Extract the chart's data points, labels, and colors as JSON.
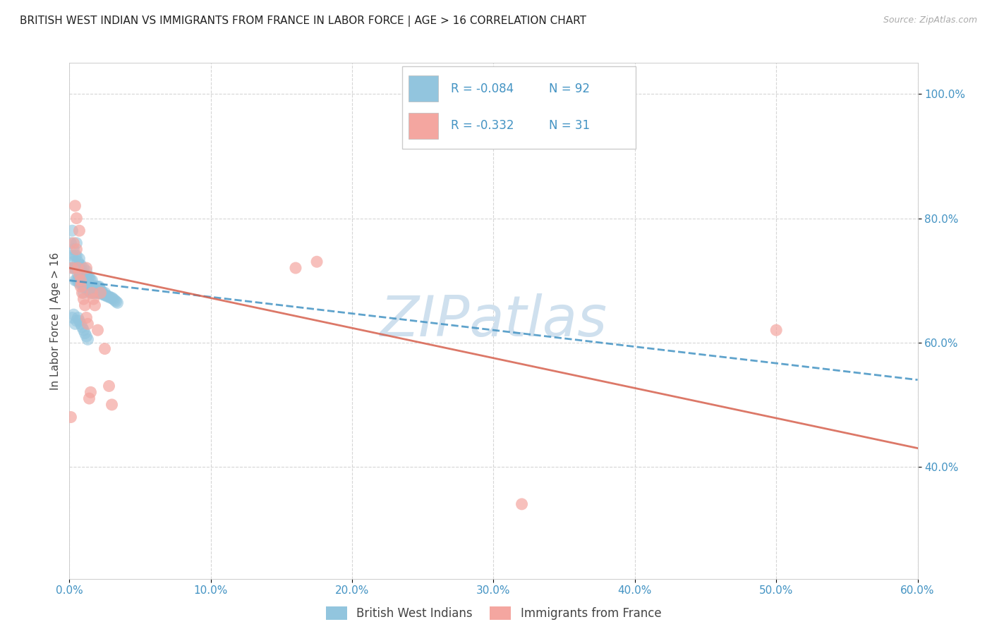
{
  "title": "BRITISH WEST INDIAN VS IMMIGRANTS FROM FRANCE IN LABOR FORCE | AGE > 16 CORRELATION CHART",
  "source_text": "Source: ZipAtlas.com",
  "ylabel": "In Labor Force | Age > 16",
  "xlim": [
    0.0,
    0.6
  ],
  "ylim": [
    0.22,
    1.05
  ],
  "xticks": [
    0.0,
    0.1,
    0.2,
    0.3,
    0.4,
    0.5,
    0.6
  ],
  "yticks": [
    0.4,
    0.6,
    0.8,
    1.0
  ],
  "xticklabels": [
    "0.0%",
    "10.0%",
    "20.0%",
    "30.0%",
    "40.0%",
    "50.0%",
    "60.0%"
  ],
  "yticklabels": [
    "40.0%",
    "60.0%",
    "80.0%",
    "100.0%"
  ],
  "r1": -0.084,
  "n1": 92,
  "r2": -0.332,
  "n2": 31,
  "color_blue": "#92c5de",
  "color_blue_edge": "#6baed6",
  "color_blue_line": "#4393c3",
  "color_pink": "#f4a6a0",
  "color_pink_edge": "#d6604d",
  "color_pink_line": "#d6604d",
  "color_r_value": "#4393c3",
  "color_axis_ticks": "#4393c3",
  "background_color": "#ffffff",
  "grid_color": "#cccccc",
  "title_fontsize": 11,
  "axis_label_fontsize": 11,
  "tick_fontsize": 11,
  "watermark_color": "#cfe0ee",
  "blue_x": [
    0.001,
    0.001,
    0.002,
    0.002,
    0.003,
    0.003,
    0.003,
    0.004,
    0.004,
    0.004,
    0.005,
    0.005,
    0.005,
    0.005,
    0.006,
    0.006,
    0.006,
    0.006,
    0.007,
    0.007,
    0.007,
    0.007,
    0.007,
    0.008,
    0.008,
    0.008,
    0.008,
    0.009,
    0.009,
    0.009,
    0.01,
    0.01,
    0.01,
    0.01,
    0.01,
    0.011,
    0.011,
    0.011,
    0.012,
    0.012,
    0.012,
    0.012,
    0.013,
    0.013,
    0.013,
    0.014,
    0.014,
    0.014,
    0.015,
    0.015,
    0.015,
    0.016,
    0.016,
    0.016,
    0.017,
    0.017,
    0.018,
    0.018,
    0.019,
    0.019,
    0.02,
    0.02,
    0.021,
    0.021,
    0.022,
    0.022,
    0.023,
    0.023,
    0.024,
    0.025,
    0.025,
    0.026,
    0.027,
    0.028,
    0.029,
    0.03,
    0.031,
    0.032,
    0.033,
    0.034,
    0.002,
    0.003,
    0.004,
    0.005,
    0.006,
    0.007,
    0.008,
    0.009,
    0.01,
    0.011,
    0.012,
    0.013
  ],
  "blue_y": [
    0.72,
    0.76,
    0.74,
    0.78,
    0.73,
    0.75,
    0.72,
    0.7,
    0.72,
    0.74,
    0.7,
    0.72,
    0.74,
    0.76,
    0.7,
    0.71,
    0.72,
    0.73,
    0.695,
    0.705,
    0.715,
    0.725,
    0.735,
    0.695,
    0.705,
    0.715,
    0.725,
    0.695,
    0.705,
    0.715,
    0.69,
    0.7,
    0.71,
    0.72,
    0.68,
    0.69,
    0.7,
    0.71,
    0.685,
    0.695,
    0.705,
    0.715,
    0.685,
    0.695,
    0.705,
    0.685,
    0.695,
    0.705,
    0.68,
    0.69,
    0.7,
    0.68,
    0.69,
    0.7,
    0.68,
    0.69,
    0.68,
    0.69,
    0.68,
    0.69,
    0.68,
    0.69,
    0.68,
    0.69,
    0.68,
    0.685,
    0.678,
    0.682,
    0.678,
    0.676,
    0.68,
    0.676,
    0.674,
    0.674,
    0.672,
    0.672,
    0.67,
    0.668,
    0.666,
    0.664,
    0.64,
    0.645,
    0.63,
    0.635,
    0.64,
    0.635,
    0.63,
    0.625,
    0.62,
    0.615,
    0.61,
    0.605
  ],
  "pink_x": [
    0.001,
    0.002,
    0.003,
    0.004,
    0.005,
    0.005,
    0.006,
    0.007,
    0.007,
    0.008,
    0.008,
    0.009,
    0.01,
    0.011,
    0.012,
    0.012,
    0.013,
    0.014,
    0.015,
    0.016,
    0.017,
    0.018,
    0.02,
    0.022,
    0.025,
    0.028,
    0.03,
    0.16,
    0.175,
    0.5,
    0.32
  ],
  "pink_y": [
    0.48,
    0.72,
    0.76,
    0.82,
    0.8,
    0.75,
    0.72,
    0.71,
    0.78,
    0.7,
    0.69,
    0.68,
    0.67,
    0.66,
    0.64,
    0.72,
    0.63,
    0.51,
    0.52,
    0.68,
    0.67,
    0.66,
    0.62,
    0.68,
    0.59,
    0.53,
    0.5,
    0.72,
    0.73,
    0.62,
    0.34
  ],
  "trendline_blue_x0": 0.0,
  "trendline_blue_y0": 0.7,
  "trendline_blue_x1": 0.6,
  "trendline_blue_y1": 0.54,
  "trendline_pink_x0": 0.0,
  "trendline_pink_y0": 0.72,
  "trendline_pink_x1": 0.6,
  "trendline_pink_y1": 0.43
}
